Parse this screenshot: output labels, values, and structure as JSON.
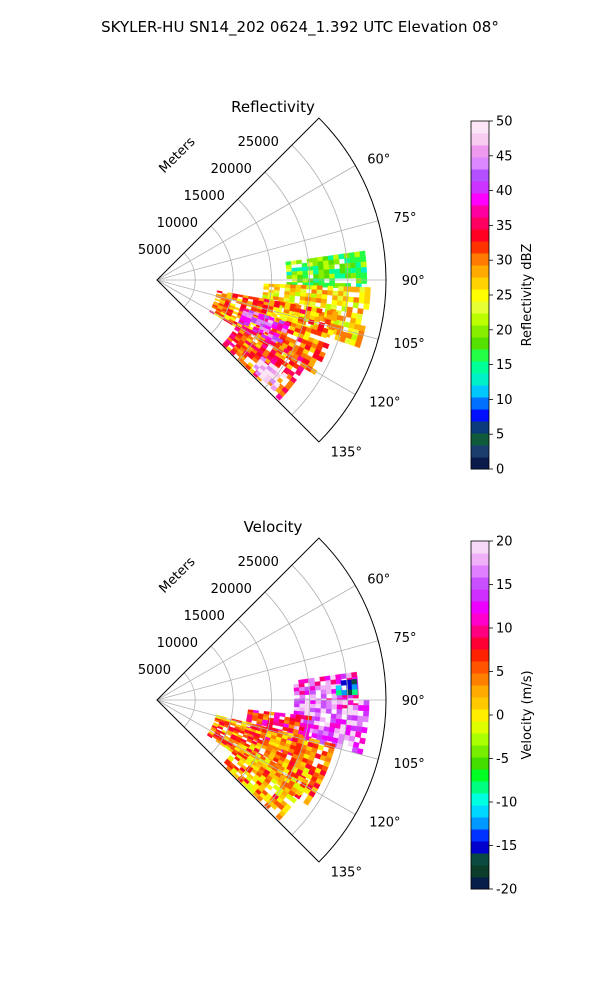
{
  "figure": {
    "title": "SKYLER-HU  SN14_202  0624_1.392 UTC Elevation 08°"
  },
  "chart_data": [
    {
      "type": "heatmap",
      "subtype": "polar-sector",
      "title": "Reflectivity",
      "range_label": "Meters",
      "range_ticks": [
        5000,
        10000,
        15000,
        20000,
        25000
      ],
      "range_lim": [
        0,
        30000
      ],
      "azimuth_ticks": [
        "60°",
        "75°",
        "90°",
        "105°",
        "120°",
        "135°"
      ],
      "azimuth_values": [
        60,
        75,
        90,
        105,
        120,
        135
      ],
      "azimuth_lim": [
        45,
        135
      ],
      "grid": true,
      "colorbar": {
        "label": "Reflectivity dBZ",
        "min": 0,
        "max": 50,
        "ticks": [
          0,
          5,
          10,
          15,
          20,
          25,
          30,
          35,
          40,
          45,
          50
        ],
        "colors": [
          "#0a1a4a",
          "#1b3d6e",
          "#0f5a3a",
          "#0b3a7a",
          "#0010ff",
          "#0070ff",
          "#00c8ff",
          "#00f0c8",
          "#00ff99",
          "#22ff44",
          "#55e000",
          "#88ee00",
          "#bbff00",
          "#e6ff33",
          "#ffff00",
          "#ffd200",
          "#ffaa00",
          "#ff7a00",
          "#ff3300",
          "#ff0022",
          "#ff0060",
          "#ff00a0",
          "#ff00ff",
          "#cc33ff",
          "#b450ff",
          "#dd88ff",
          "#ee99ee",
          "#f7ccf0",
          "#fbe5f7"
        ]
      },
      "echo_regions": [
        {
          "az_start": 82,
          "az_end": 92,
          "r_start": 17000,
          "r_end": 27500,
          "value_dbz": 18
        },
        {
          "az_start": 92,
          "az_end": 108,
          "r_start": 14000,
          "r_end": 27500,
          "value_dbz": 26
        },
        {
          "az_start": 100,
          "az_end": 120,
          "r_start": 8000,
          "r_end": 24000,
          "value_dbz": 30
        },
        {
          "az_start": 108,
          "az_end": 118,
          "r_start": 12000,
          "r_end": 18000,
          "value_dbz": 42
        },
        {
          "az_start": 118,
          "az_end": 134,
          "r_start": 12000,
          "r_end": 22000,
          "value_dbz": 32
        },
        {
          "az_start": 126,
          "az_end": 133,
          "r_start": 17000,
          "r_end": 21000,
          "value_dbz": 48
        }
      ]
    },
    {
      "type": "heatmap",
      "subtype": "polar-sector",
      "title": "Velocity",
      "range_label": "Meters",
      "range_ticks": [
        5000,
        10000,
        15000,
        20000,
        25000
      ],
      "range_lim": [
        0,
        30000
      ],
      "azimuth_ticks": [
        "60°",
        "75°",
        "90°",
        "105°",
        "120°",
        "135°"
      ],
      "azimuth_values": [
        60,
        75,
        90,
        105,
        120,
        135
      ],
      "azimuth_lim": [
        45,
        135
      ],
      "grid": true,
      "colorbar": {
        "label": "Velocity (m/s)",
        "min": -20,
        "max": 20,
        "ticks": [
          -20,
          -15,
          -10,
          -5,
          0,
          5,
          10,
          15,
          20
        ],
        "colors": [
          "#061e4a",
          "#0b3d2a",
          "#0a4a40",
          "#0000cc",
          "#0033ff",
          "#0099ff",
          "#00d8ff",
          "#00ffe0",
          "#00ff80",
          "#00ff22",
          "#44dd00",
          "#77ee00",
          "#aaff00",
          "#ddff00",
          "#ffee00",
          "#ffc800",
          "#ffaa00",
          "#ff8000",
          "#ff5500",
          "#ff2200",
          "#ff0033",
          "#ff0080",
          "#ff00cc",
          "#ee00ff",
          "#d030ff",
          "#c850ff",
          "#e080ff",
          "#f0b0f8",
          "#f8d8f8"
        ]
      },
      "echo_regions": [
        {
          "az_start": 82,
          "az_end": 92,
          "r_start": 18000,
          "r_end": 26000,
          "value_ms": 14
        },
        {
          "az_start": 90,
          "az_end": 104,
          "r_start": 18000,
          "r_end": 27500,
          "value_ms": 16
        },
        {
          "az_start": 96,
          "az_end": 112,
          "r_start": 12000,
          "r_end": 20000,
          "value_ms": 8
        },
        {
          "az_start": 104,
          "az_end": 124,
          "r_start": 8000,
          "r_end": 24000,
          "value_ms": 4
        },
        {
          "az_start": 118,
          "az_end": 134,
          "r_start": 12000,
          "r_end": 22000,
          "value_ms": 3
        },
        {
          "az_start": 84,
          "az_end": 88,
          "r_start": 23500,
          "r_end": 26000,
          "value_ms": -12
        }
      ]
    }
  ]
}
